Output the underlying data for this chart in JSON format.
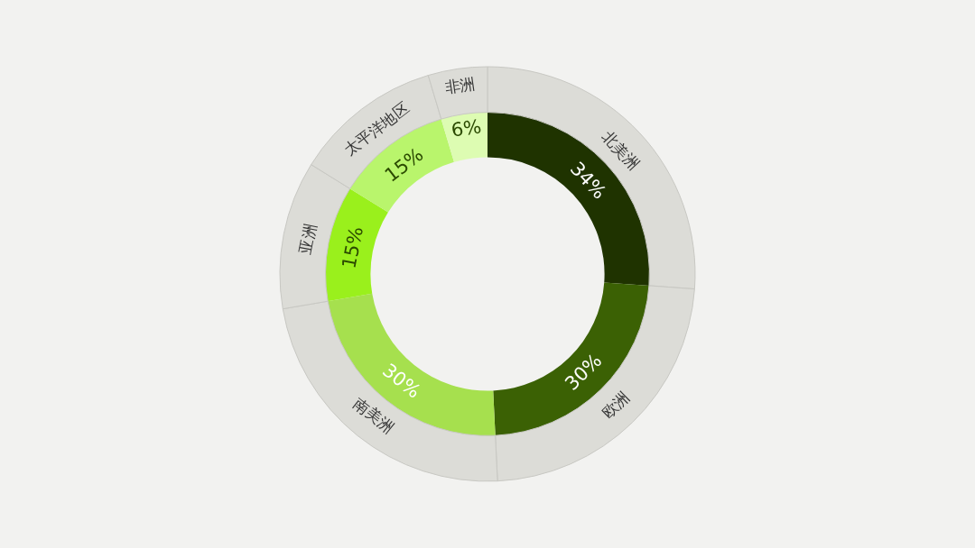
{
  "chart_data": {
    "type": "donut",
    "categories": [
      "北美洲",
      "欧洲",
      "南美洲",
      "亚洲",
      "太平洋地区",
      "非洲"
    ],
    "series": [
      {
        "values": [
          34,
          30,
          30,
          15,
          15,
          6
        ],
        "value_labels": [
          "34%",
          "30%",
          "30%",
          "15%",
          "15%",
          "6%"
        ],
        "colors": [
          "#1f3300",
          "#3b6104",
          "#a6e04e",
          "#9af01c",
          "#b9f56c",
          "#ddfcb2"
        ]
      },
      {
        "values": [
          26.15,
          23.08,
          23.08,
          11.54,
          11.54,
          4.61
        ],
        "color": "#dcdcd7"
      }
    ]
  }
}
